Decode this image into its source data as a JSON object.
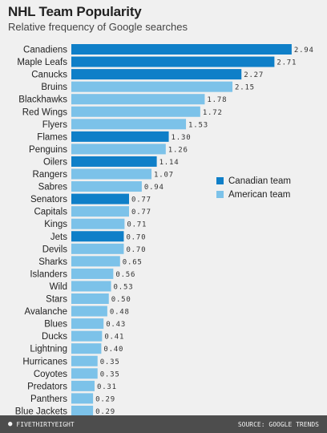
{
  "chart_data": {
    "type": "bar",
    "orientation": "horizontal",
    "title": "NHL Team Popularity",
    "subtitle": "Relative frequency of Google searches",
    "categories": [
      "Canadiens",
      "Maple Leafs",
      "Canucks",
      "Bruins",
      "Blackhawks",
      "Red Wings",
      "Flyers",
      "Flames",
      "Penguins",
      "Oilers",
      "Rangers",
      "Sabres",
      "Senators",
      "Capitals",
      "Kings",
      "Jets",
      "Devils",
      "Sharks",
      "Islanders",
      "Wild",
      "Stars",
      "Avalanche",
      "Blues",
      "Ducks",
      "Lightning",
      "Hurricanes",
      "Coyotes",
      "Predators",
      "Panthers",
      "Blue Jackets"
    ],
    "values": [
      2.94,
      2.71,
      2.27,
      2.15,
      1.78,
      1.72,
      1.53,
      1.3,
      1.26,
      1.14,
      1.07,
      0.94,
      0.77,
      0.77,
      0.71,
      0.7,
      0.7,
      0.65,
      0.56,
      0.53,
      0.5,
      0.48,
      0.43,
      0.41,
      0.4,
      0.35,
      0.35,
      0.31,
      0.29,
      0.29
    ],
    "value_labels": [
      "2.94",
      "2.71",
      "2.27",
      "2.15",
      "1.78",
      "1.72",
      "1.53",
      "1.30",
      "1.26",
      "1.14",
      "1.07",
      "0.94",
      "0.77",
      "0.77",
      "0.71",
      "0.70",
      "0.70",
      "0.65",
      "0.56",
      "0.53",
      "0.50",
      "0.48",
      "0.43",
      "0.41",
      "0.40",
      "0.35",
      "0.35",
      "0.31",
      "0.29",
      "0.29"
    ],
    "groups": [
      "canadian",
      "canadian",
      "canadian",
      "american",
      "american",
      "american",
      "american",
      "canadian",
      "american",
      "canadian",
      "american",
      "american",
      "canadian",
      "american",
      "american",
      "canadian",
      "american",
      "american",
      "american",
      "american",
      "american",
      "american",
      "american",
      "american",
      "american",
      "american",
      "american",
      "american",
      "american",
      "american"
    ],
    "legend": {
      "position": "right-middle",
      "entries": [
        {
          "key": "canadian",
          "label": "Canadian team",
          "color": "#0f7fc8"
        },
        {
          "key": "american",
          "label": "American team",
          "color": "#7cc2e9"
        }
      ]
    },
    "xlim": [
      0,
      3.0
    ],
    "grid": false
  },
  "footer": {
    "brand": "FIVETHIRTYEIGHT",
    "source": "SOURCE: GOOGLE TRENDS"
  }
}
